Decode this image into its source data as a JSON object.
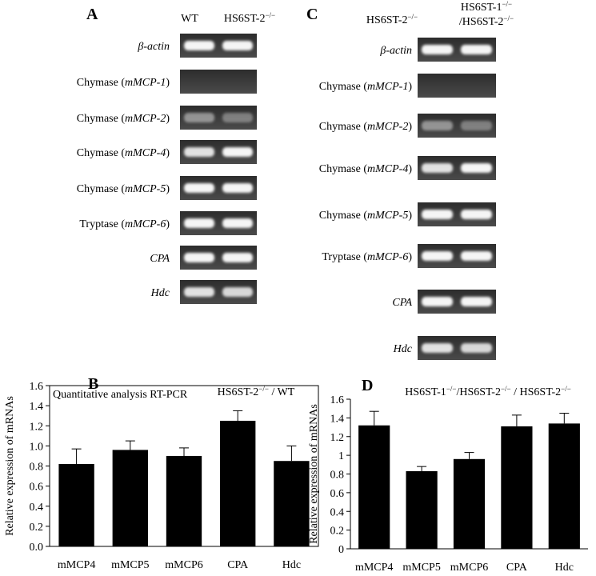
{
  "panel_a": {
    "letter": "A",
    "lanes": [
      [
        [
          {
            "text": "WT"
          }
        ]
      ],
      [
        [
          {
            "text": "HS6ST-2"
          },
          {
            "text": "−/−",
            "sup": true
          }
        ]
      ]
    ],
    "rows": [
      {
        "gene": "β-actin"
      },
      {
        "plain": "Chymase (",
        "gene": "mMCP-1",
        "close": ")"
      },
      {
        "plain": "Chymase (",
        "gene": "mMCP-2",
        "close": ")"
      },
      {
        "plain": "Chymase (",
        "gene": "mMCP-4",
        "close": ")"
      },
      {
        "plain": "Chymase (",
        "gene": "mMCP-5",
        "close": ")"
      },
      {
        "plain": "Tryptase (",
        "gene": "mMCP-6",
        "close": ")"
      },
      {
        "gene": "CPA"
      },
      {
        "gene": "Hdc"
      }
    ]
  },
  "panel_c": {
    "letter": "C",
    "lanes": [
      [
        [
          {
            "text": "HS6ST-2"
          },
          {
            "text": "−/−",
            "sup": true
          }
        ]
      ],
      [
        [
          {
            "text": "HS6ST-1"
          },
          {
            "text": "−/−",
            "sup": true
          }
        ],
        [
          {
            "text": "/HS6ST-2"
          },
          {
            "text": "−/−",
            "sup": true
          }
        ]
      ]
    ],
    "rows": [
      {
        "gene": "β-actin"
      },
      {
        "plain": "Chymase (",
        "gene": "mMCP-1",
        "close": ")"
      },
      {
        "plain": "Chymase (",
        "gene": "mMCP-2",
        "close": ")"
      },
      {
        "plain": "Chymase (",
        "gene": "mMCP-4",
        "close": ")"
      },
      {
        "plain": "Chymase (",
        "gene": "mMCP-5",
        "close": ")"
      },
      {
        "plain": "Tryptase (",
        "gene": "mMCP-6",
        "close": ")"
      },
      {
        "gene": "CPA"
      },
      {
        "gene": "Hdc"
      }
    ]
  },
  "chart_data": [
    {
      "type": "bar",
      "panel_label": "B",
      "title": [
        {
          "text": "HS6ST-2"
        },
        {
          "text": "−/−",
          "sup": true
        },
        {
          "text": " / WT"
        }
      ],
      "annotation": "Quantitative analysis RT-PCR",
      "y_label": "Relative expression of mRNAs",
      "categories": [
        "mMCP4",
        "mMCP5",
        "mMCP6",
        "CPA",
        "Hdc"
      ],
      "values": [
        0.82,
        0.96,
        0.9,
        1.25,
        0.85
      ],
      "errors": [
        0.15,
        0.09,
        0.08,
        0.1,
        0.15
      ],
      "color": "#000000",
      "frame": true,
      "ylim": [
        0,
        1.6
      ],
      "yticks": [
        {
          "value": 0,
          "label": "0.0"
        },
        0.2,
        0.4,
        0.6,
        0.8,
        {
          "value": 1,
          "label": "1.0"
        },
        1.2,
        1.4,
        1.6
      ]
    },
    {
      "type": "bar",
      "panel_label": "D",
      "title": [
        {
          "text": "HS6ST-1"
        },
        {
          "text": "−/−",
          "sup": true
        },
        {
          "text": "/HS6ST-2"
        },
        {
          "text": "−/−",
          "sup": true
        },
        {
          "text": "  /  HS6ST-2"
        },
        {
          "text": "−/−",
          "sup": true
        }
      ],
      "y_label": "Relative expression of mRNAs",
      "categories": [
        "mMCP4",
        "mMCP5",
        "mMCP6",
        "CPA",
        "Hdc"
      ],
      "values": [
        1.32,
        0.83,
        0.96,
        1.31,
        1.34
      ],
      "errors": [
        0.15,
        0.05,
        0.07,
        0.12,
        0.11
      ],
      "color": "#000000",
      "frame": false,
      "ylim": [
        0,
        1.6
      ],
      "yticks": [
        0,
        0.2,
        0.4,
        0.6,
        0.8,
        1,
        1.2,
        1.4,
        1.6
      ]
    }
  ]
}
